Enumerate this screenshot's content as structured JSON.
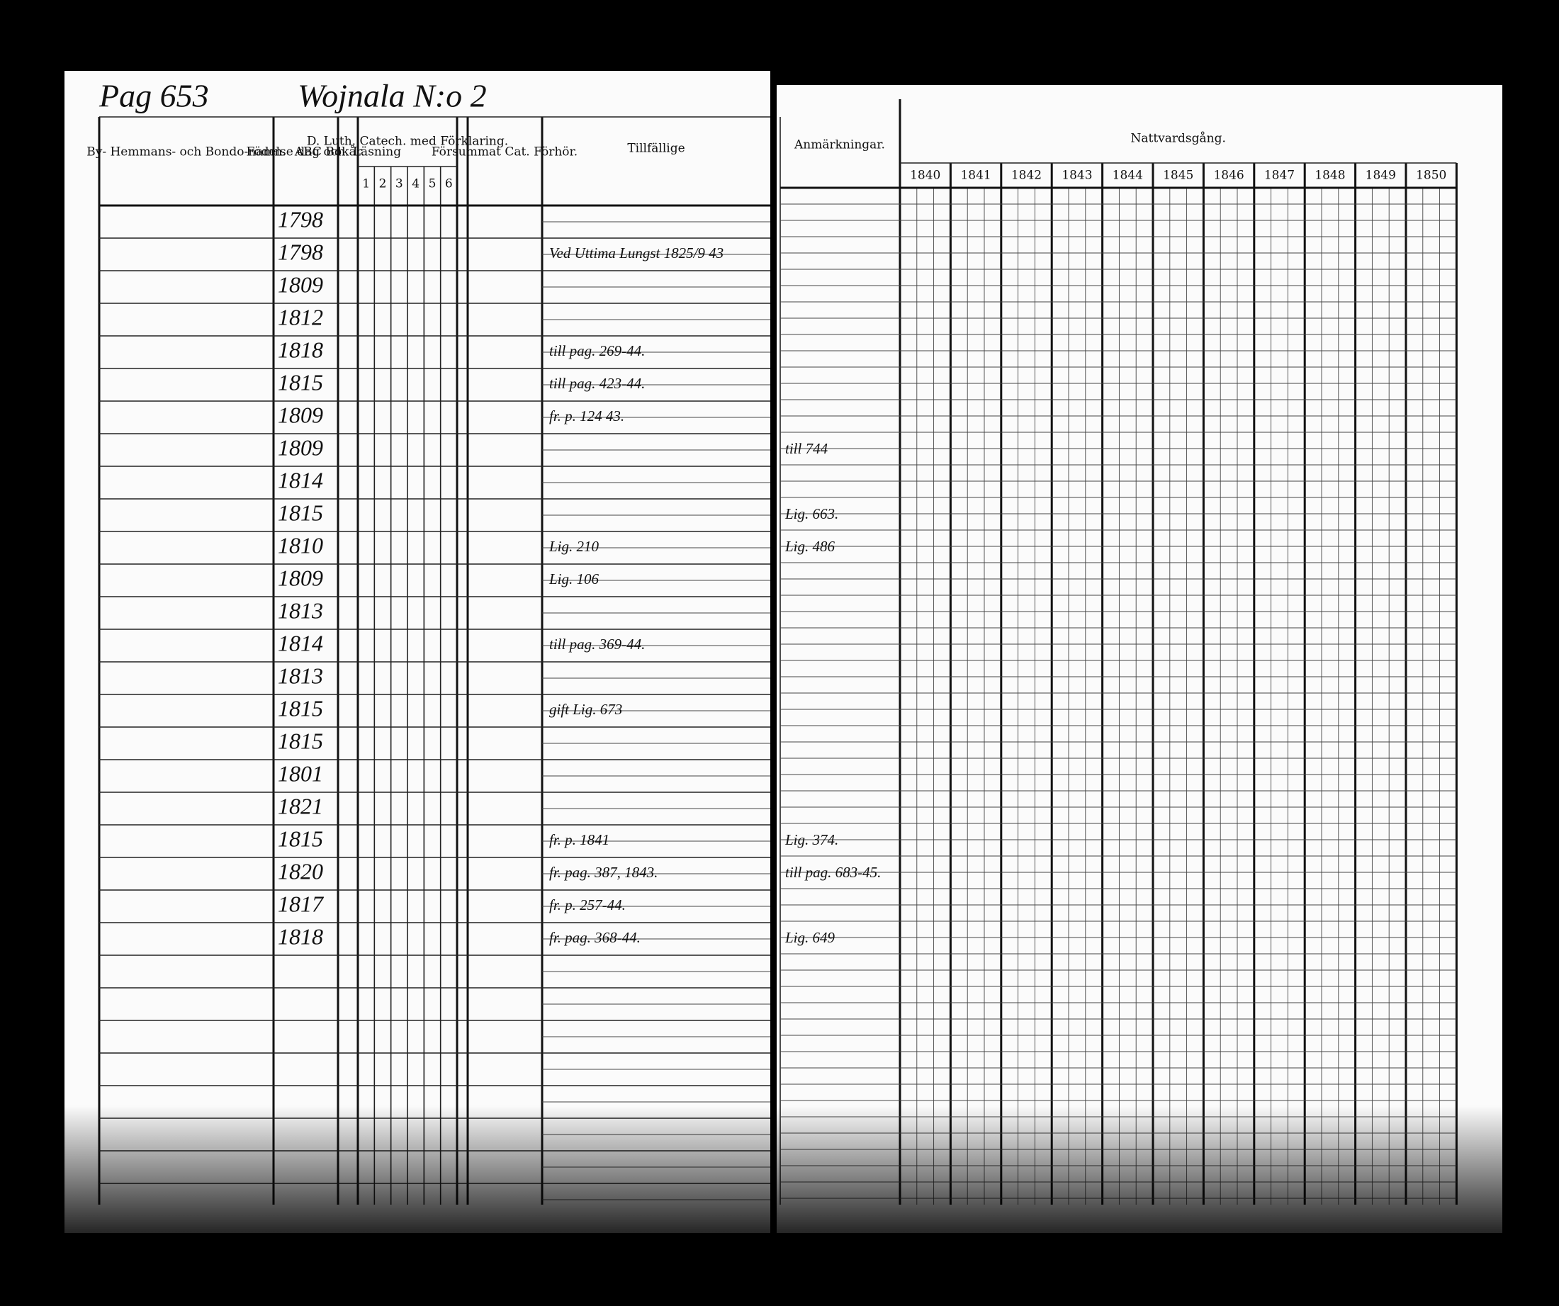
{
  "header": {
    "page": "Pag 653",
    "place": "Wojnala N:o 2"
  },
  "left_columns": {
    "name": "By- Hemmans- och Bondo-namn.",
    "birth": "Födelse dag och år.",
    "abc": "ABC Bok Läsning",
    "catechism": "D. Luth. Catech. med Förklaring.",
    "catechism_parts": [
      "1",
      "2",
      "3",
      "4",
      "5",
      "6"
    ],
    "missed": "Försummat Cat. Förhör.",
    "occasional": "Tillfällige"
  },
  "right_columns": {
    "remarks": "Anmärkningar.",
    "communion": "Nattvardsgång.",
    "years": [
      "1840",
      "1841",
      "1842",
      "1843",
      "1844",
      "1845",
      "1846",
      "1847",
      "1848",
      "1849",
      "1850"
    ]
  },
  "rows": [
    {
      "birth": "1798"
    },
    {
      "birth": "1798",
      "note": "Ved Uttima Lungst 1825/9 43"
    },
    {
      "birth": "1809"
    },
    {
      "birth": "1812"
    },
    {
      "birth": "1818",
      "note": "till pag. 269-44."
    },
    {
      "birth": "1815",
      "note": "till pag. 423-44."
    },
    {
      "birth": "1809",
      "note": "fr. p. 124 43."
    },
    {
      "birth": "1809",
      "remark": "till 744"
    },
    {
      "birth": "1814"
    },
    {
      "birth": "1815",
      "remark": "Lig. 663."
    },
    {
      "birth": "1810",
      "note": "Lig. 210",
      "remark": "Lig. 486"
    },
    {
      "birth": "1809",
      "note": "Lig. 106"
    },
    {
      "birth": "1813"
    },
    {
      "birth": "1814",
      "note": "till pag. 369-44."
    },
    {
      "birth": "1813"
    },
    {
      "birth": "1815",
      "note": "gift Lig. 673"
    },
    {
      "birth": "1815"
    },
    {
      "birth": "1801"
    },
    {
      "birth": "1821"
    },
    {
      "birth": "1815",
      "note": "fr. p. 1841",
      "remark": "Lig. 374."
    },
    {
      "birth": "1820",
      "note": "fr. pag. 387, 1843.",
      "remark": "till pag. 683-45."
    },
    {
      "birth": "1817",
      "note": "fr. p. 257-44."
    },
    {
      "birth": "1818",
      "note": "fr. pag. 368-44.",
      "remark": "Lig. 649"
    }
  ]
}
